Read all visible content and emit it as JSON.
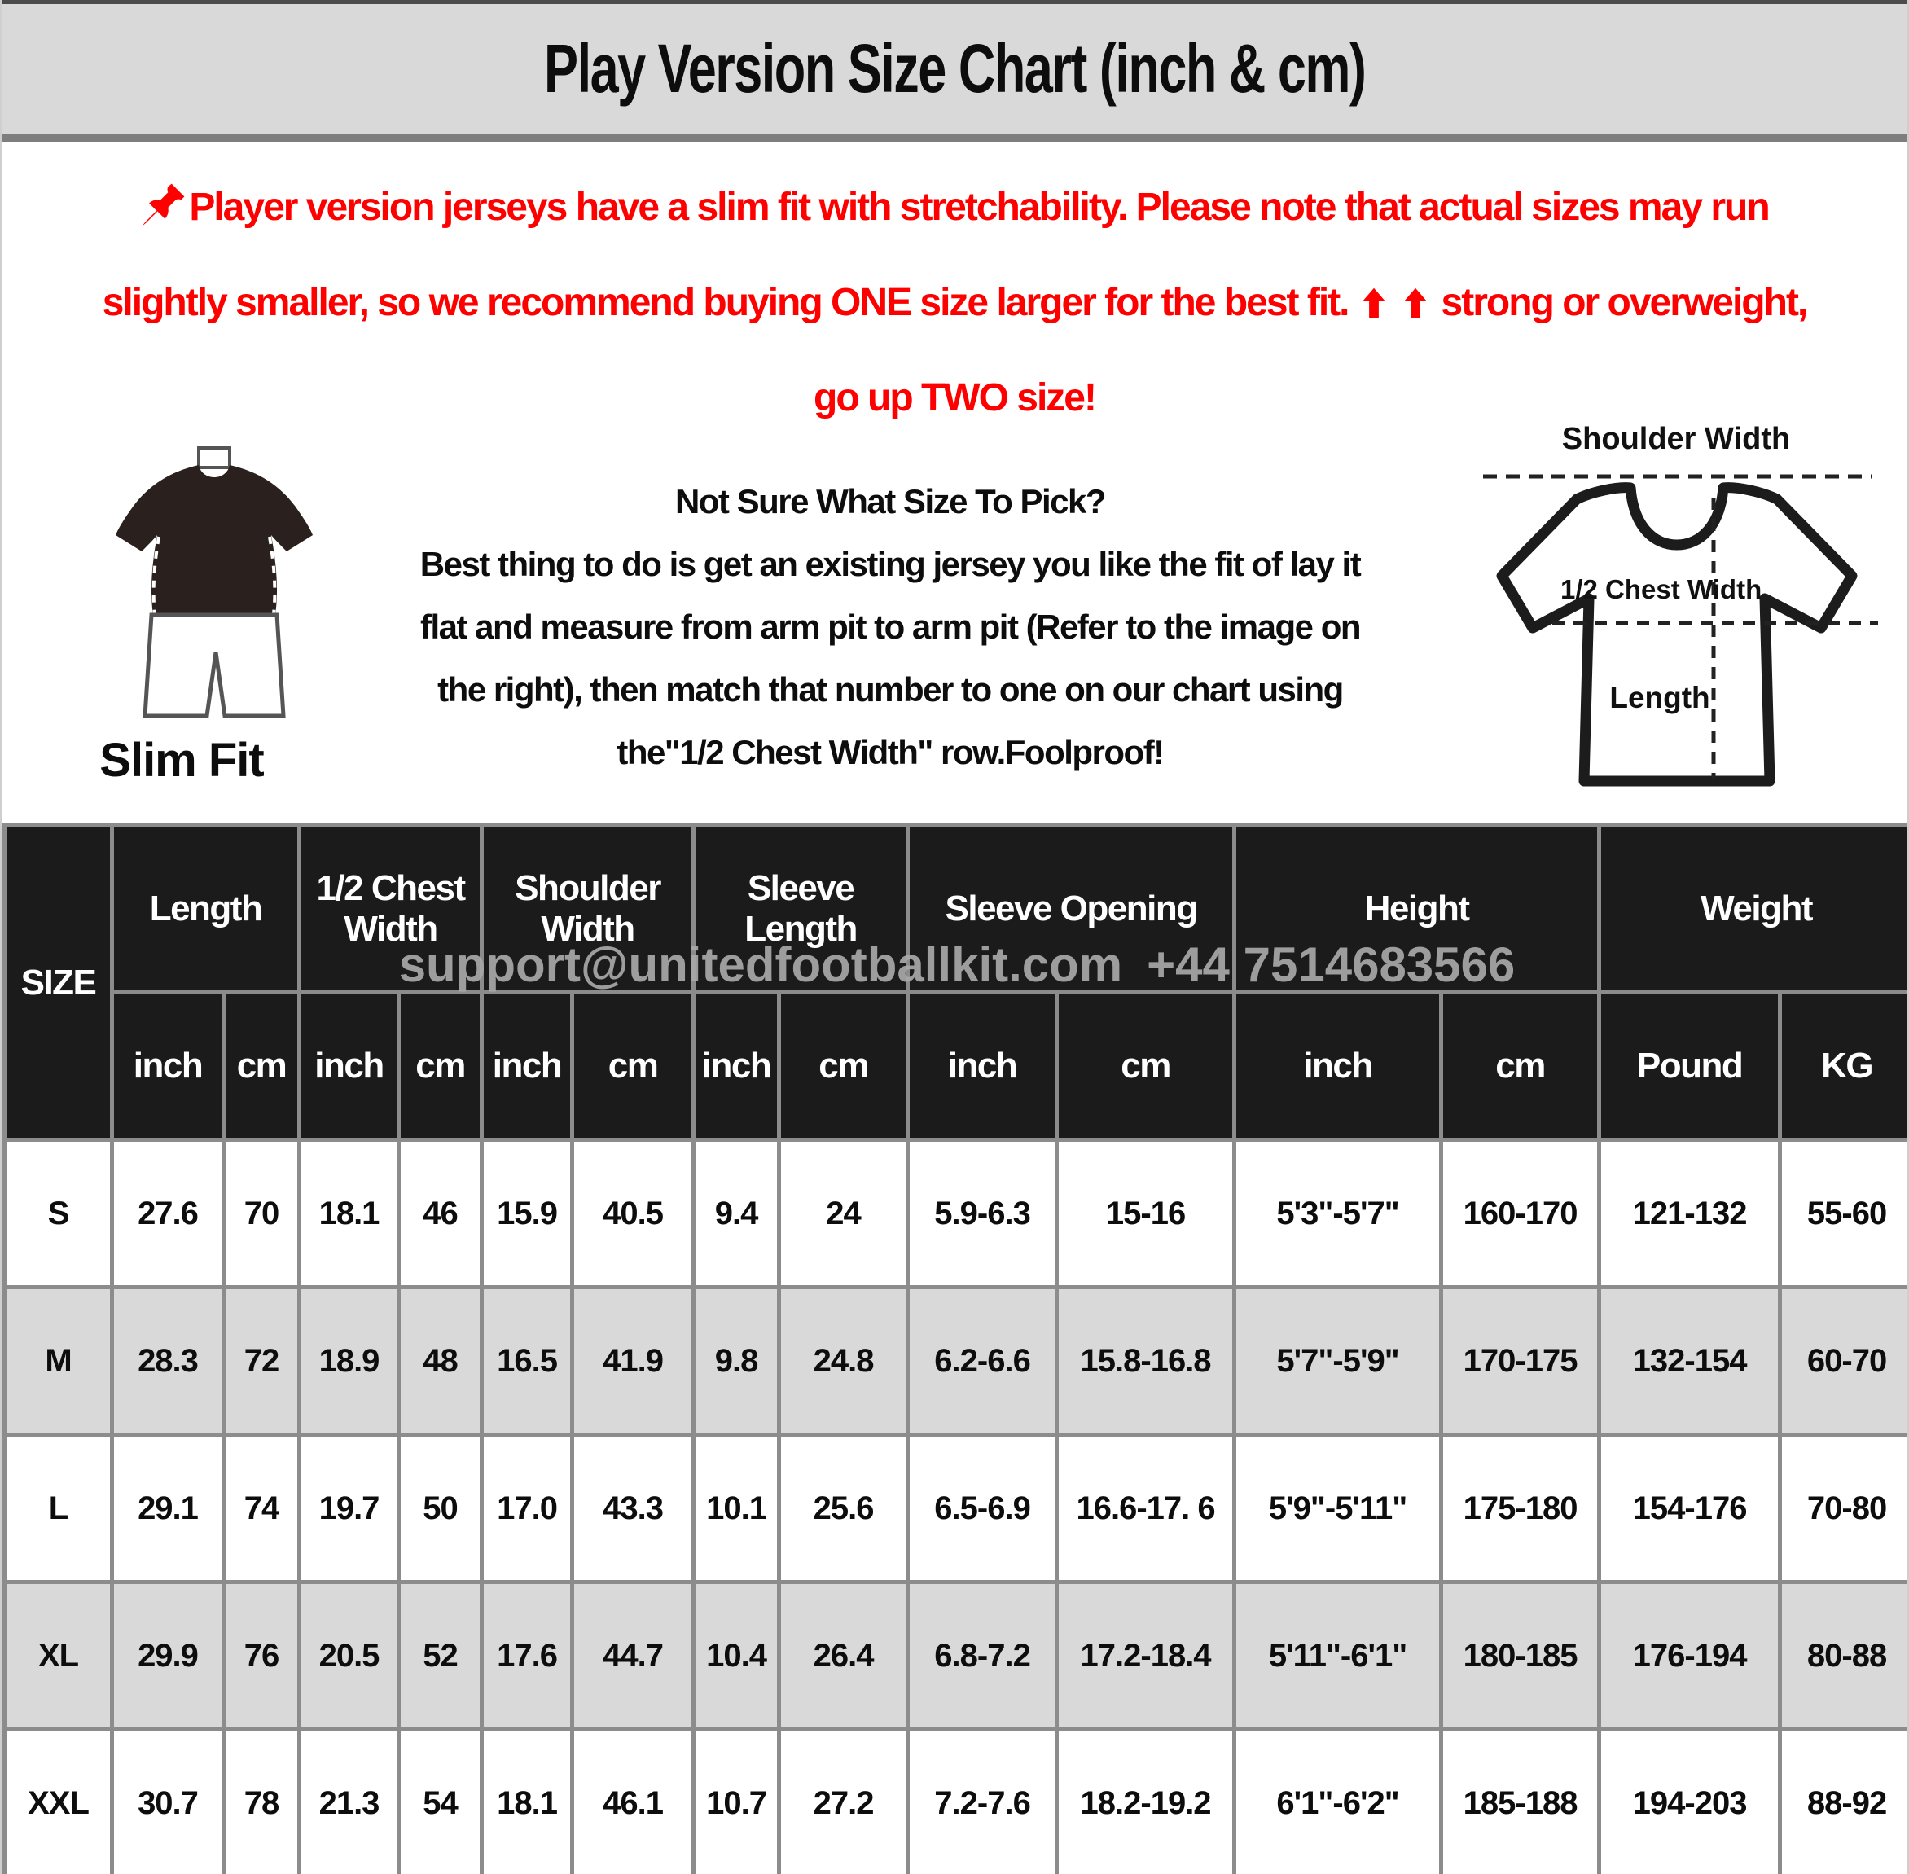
{
  "title": "Play Version Size Chart (inch & cm)",
  "notice": {
    "color": "#fe0000",
    "line1": "Player version jerseys have a slim fit with stretchability. Please note that actual sizes may run",
    "line2_before_arrows": "slightly smaller, so we recommend buying ONE size larger for the best fit.",
    "line2_after_arrows": "strong or overweight,",
    "line3": "go up TWO size!"
  },
  "fit_guide": {
    "slim_fit_label": "Slim Fit",
    "heading": "Not Sure What Size To Pick?",
    "body_lines": [
      "Best thing to do is get an existing jersey you like the fit of lay it",
      "flat and measure from arm pit to arm pit (Refer to the image on",
      "the right), then match that number to one on our chart using",
      "the\"1/2 Chest Width\" row.Foolproof!"
    ],
    "diagram": {
      "shoulder_width_label": "Shoulder Width",
      "half_chest_width_label": "1/2 Chest Width",
      "length_label": "Length"
    }
  },
  "watermark": "support@unitedfootballkit.com +44 7514683566",
  "table": {
    "size_header": "SIZE",
    "groups": [
      {
        "label": "Length"
      },
      {
        "label": "1/2 Chest Width"
      },
      {
        "label": "Shoulder Width"
      },
      {
        "label": "Sleeve Length"
      },
      {
        "label": "Sleeve Opening"
      },
      {
        "label": "Height"
      },
      {
        "label": "Weight"
      }
    ],
    "units": [
      "inch",
      "cm",
      "inch",
      "cm",
      "inch",
      "cm",
      "inch",
      "cm",
      "inch",
      "cm",
      "inch",
      "cm",
      "Pound",
      "KG"
    ],
    "rows": [
      {
        "size": "S",
        "cells": [
          "27.6",
          "70",
          "18.1",
          "46",
          "15.9",
          "40.5",
          "9.4",
          "24",
          "5.9-6.3",
          "15-16",
          "5'3\"-5'7\"",
          "160-170",
          "121-132",
          "55-60"
        ]
      },
      {
        "size": "M",
        "cells": [
          "28.3",
          "72",
          "18.9",
          "48",
          "16.5",
          "41.9",
          "9.8",
          "24.8",
          "6.2-6.6",
          "15.8-16.8",
          "5'7\"-5'9\"",
          "170-175",
          "132-154",
          "60-70"
        ]
      },
      {
        "size": "L",
        "cells": [
          "29.1",
          "74",
          "19.7",
          "50",
          "17.0",
          "43.3",
          "10.1",
          "25.6",
          "6.5-6.9",
          "16.6-17. 6",
          "5'9\"-5'11\"",
          "175-180",
          "154-176",
          "70-80"
        ]
      },
      {
        "size": "XL",
        "cells": [
          "29.9",
          "76",
          "20.5",
          "52",
          "17.6",
          "44.7",
          "10.4",
          "26.4",
          "6.8-7.2",
          "17.2-18.4",
          "5'11\"-6'1\"",
          "180-185",
          "176-194",
          "80-88"
        ]
      },
      {
        "size": "XXL",
        "cells": [
          "30.7",
          "78",
          "21.3",
          "54",
          "18.1",
          "46.1",
          "10.7",
          "27.2",
          "7.2-7.6",
          "18.2-19.2",
          "6'1\"-6'2\"",
          "185-188",
          "194-203",
          "88-92"
        ]
      }
    ],
    "colors": {
      "header_bg": "#1b1b1b",
      "header_text": "#ffffff",
      "row_alt_bg": "#d9d9d9",
      "border": "#8c8c8c",
      "accent_red": "#fe0000"
    }
  }
}
